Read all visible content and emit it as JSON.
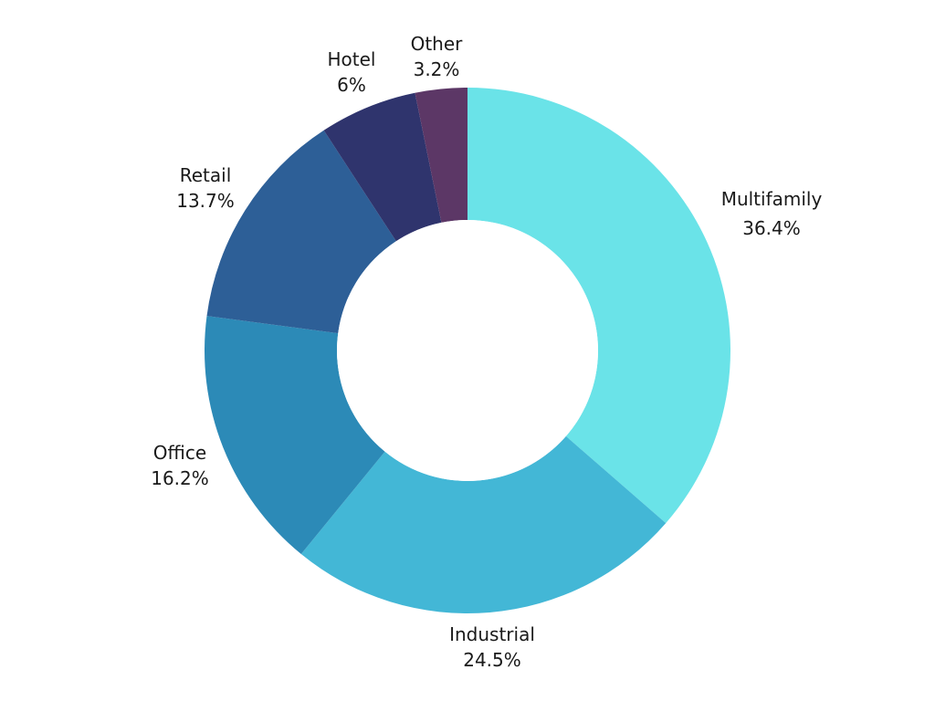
{
  "chart_data": {
    "type": "pie",
    "subtype": "donut",
    "title": "",
    "legend": "none",
    "slices": [
      {
        "label": "Multifamily",
        "value": 36.4,
        "value_label": "36.4%",
        "color": "#6AE3E8"
      },
      {
        "label": "Industrial",
        "value": 24.5,
        "value_label": "24.5%",
        "color": "#43B7D6"
      },
      {
        "label": "Office",
        "value": 16.2,
        "value_label": "16.2%",
        "color": "#2C8AB7"
      },
      {
        "label": "Retail",
        "value": 13.7,
        "value_label": "13.7%",
        "color": "#2D5F97"
      },
      {
        "label": "Hotel",
        "value": 6,
        "value_label": "6%",
        "color": "#2F346D"
      },
      {
        "label": "Other",
        "value": 3.2,
        "value_label": "3.2%",
        "color": "#5C3766"
      }
    ]
  }
}
